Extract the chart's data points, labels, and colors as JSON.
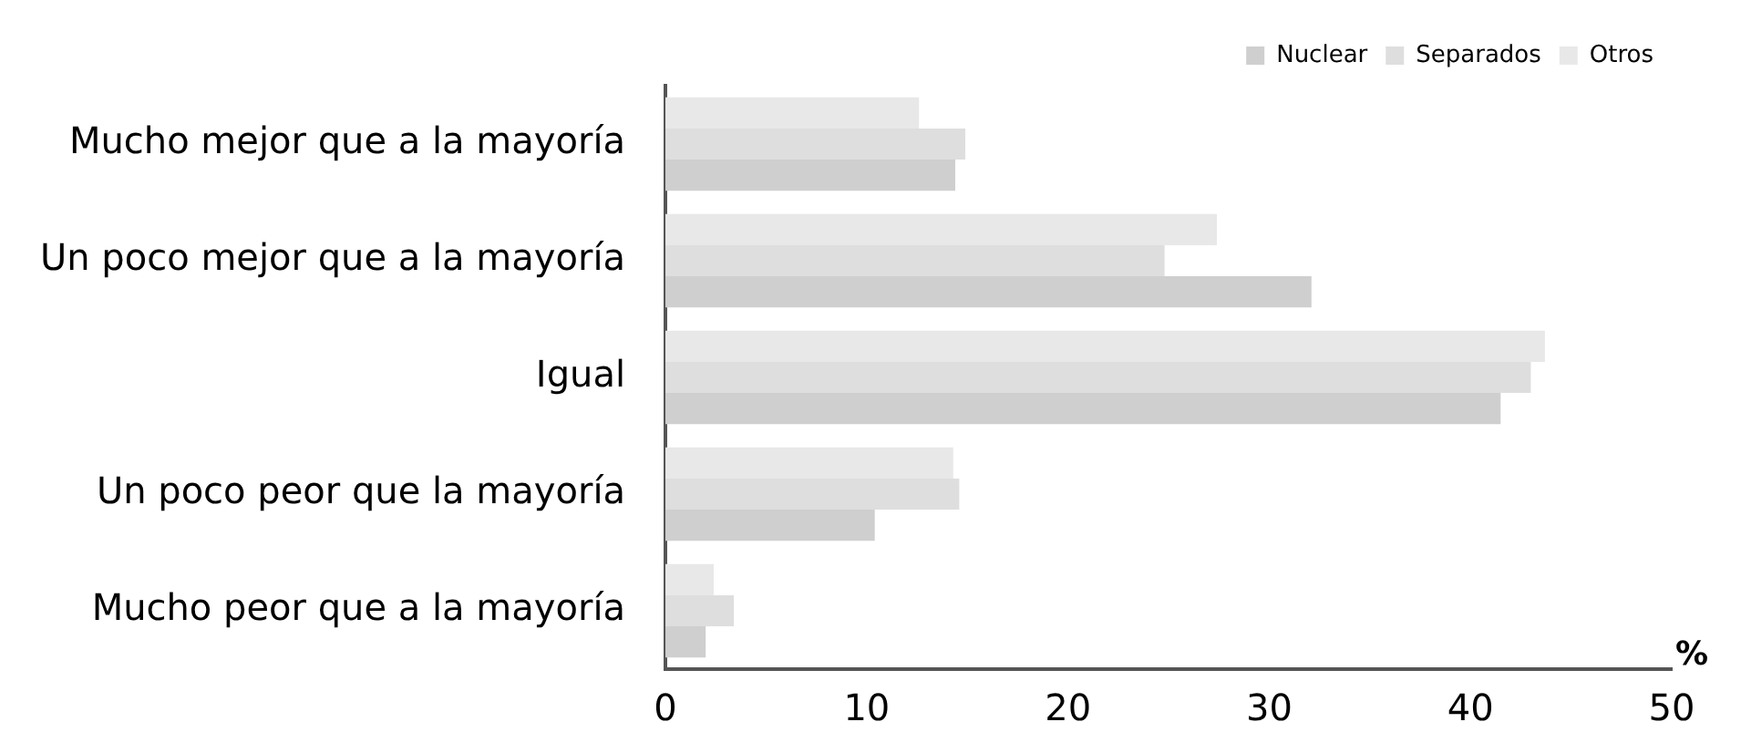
{
  "chart_data": {
    "type": "bar",
    "orientation": "horizontal",
    "xlabel": "%",
    "categories": [
      "Mucho mejor que a la mayoría",
      "Un poco mejor que a la mayoría",
      "Igual",
      "Un poco peor que la mayoría",
      "Mucho peor que a la mayoría"
    ],
    "series": [
      {
        "name": "Otros",
        "color": "#e8e8e8",
        "values": [
          12.6,
          27.4,
          43.7,
          14.3,
          2.4
        ]
      },
      {
        "name": "Separados",
        "color": "#dedede",
        "values": [
          14.9,
          24.8,
          43.0,
          14.6,
          3.4
        ]
      },
      {
        "name": "Nuclear",
        "color": "#cfcfcf",
        "values": [
          14.4,
          32.1,
          41.5,
          10.4,
          2.0
        ]
      }
    ],
    "xlim": [
      0,
      50
    ],
    "xticks": [
      0,
      10,
      20,
      30,
      40,
      50
    ],
    "grid": false,
    "legend": "top right"
  }
}
